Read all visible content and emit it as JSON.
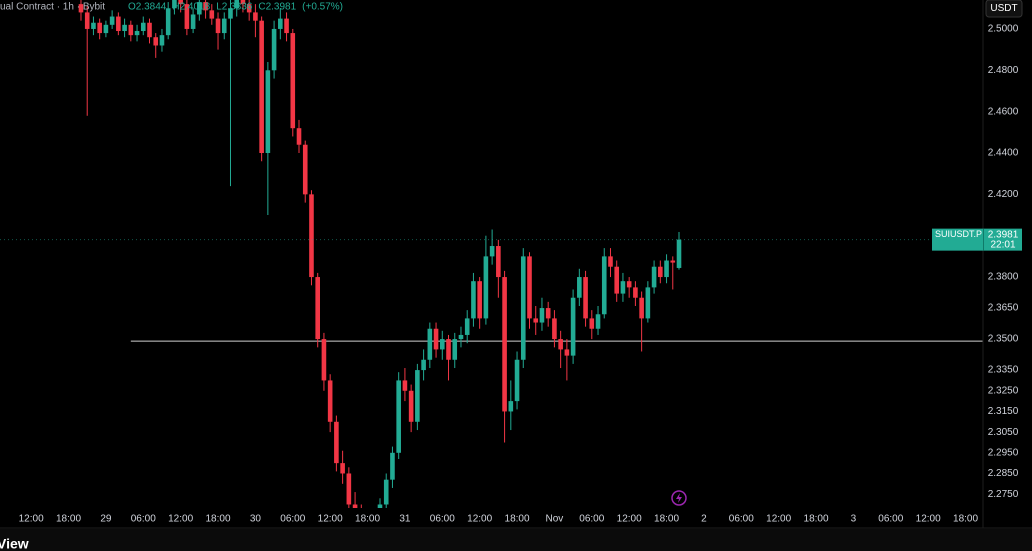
{
  "header": {
    "symbol": "ual Contract · 1h · Bybit",
    "ohlc": [
      "O2.3844",
      "H2.4018",
      "L2.3836",
      "C2.3981",
      "(+0.57%)"
    ],
    "currency": "USDT",
    "brand": "View"
  },
  "chart_data": {
    "type": "candlestick",
    "up_color": "#22ab94",
    "down_color": "#f23645",
    "x": [
      20,
      21,
      22,
      23,
      24,
      25,
      26,
      27,
      28,
      29,
      30,
      31,
      32,
      33,
      34,
      35,
      36,
      37,
      38,
      39,
      40,
      41,
      42,
      43,
      44,
      45,
      46,
      47,
      48,
      49,
      50,
      51,
      52,
      53,
      54,
      55,
      56,
      57,
      58,
      59,
      60,
      61,
      62,
      63,
      64,
      65,
      66,
      67,
      68,
      69,
      70,
      71,
      72,
      73,
      74,
      75,
      76,
      77,
      78,
      79,
      80,
      81,
      82,
      83,
      84,
      85,
      86,
      87,
      88,
      89,
      90,
      91,
      92,
      93,
      94,
      95,
      96,
      97,
      98,
      99,
      100,
      101,
      102,
      103,
      104,
      105,
      106,
      107,
      108,
      109,
      110,
      111,
      112,
      113,
      114,
      115,
      116
    ],
    "open": [
      2.512,
      2.508,
      2.5,
      2.503,
      2.498,
      2.502,
      2.506,
      2.499,
      2.502,
      2.497,
      2.499,
      2.503,
      2.496,
      2.492,
      2.497,
      2.51,
      2.514,
      2.512,
      2.5,
      2.507,
      2.513,
      2.509,
      2.505,
      2.498,
      2.505,
      2.51,
      2.514,
      2.512,
      2.508,
      2.504,
      2.44,
      2.48,
      2.5,
      2.505,
      2.498,
      2.452,
      2.444,
      2.42,
      2.38,
      2.35,
      2.33,
      2.31,
      2.29,
      2.285,
      2.27,
      2.266,
      2.262,
      2.26,
      2.264,
      2.27,
      2.282,
      2.295,
      2.33,
      2.325,
      2.31,
      2.335,
      2.34,
      2.355,
      2.345,
      2.35,
      2.34,
      2.35,
      2.352,
      2.36,
      2.378,
      2.36,
      2.39,
      2.395,
      2.38,
      2.315,
      2.32,
      2.34,
      2.39,
      2.36,
      2.358,
      2.365,
      2.36,
      2.35,
      2.345,
      2.342,
      2.37,
      2.38,
      2.36,
      2.355,
      2.362,
      2.39,
      2.385,
      2.372,
      2.378,
      2.375,
      2.37,
      2.36,
      2.375,
      2.385,
      2.38,
      2.388,
      2.3844
    ],
    "high": [
      2.516,
      2.511,
      2.506,
      2.505,
      2.504,
      2.509,
      2.508,
      2.505,
      2.504,
      2.502,
      2.506,
      2.505,
      2.498,
      2.5,
      2.513,
      2.518,
      2.518,
      2.514,
      2.51,
      2.518,
      2.516,
      2.512,
      2.508,
      2.508,
      2.514,
      2.518,
      2.518,
      2.516,
      2.512,
      2.506,
      2.484,
      2.504,
      2.51,
      2.508,
      2.5,
      2.456,
      2.446,
      2.422,
      2.382,
      2.353,
      2.333,
      2.313,
      2.296,
      2.288,
      2.276,
      2.27,
      2.266,
      2.268,
      2.273,
      2.285,
      2.298,
      2.334,
      2.336,
      2.328,
      2.338,
      2.345,
      2.358,
      2.358,
      2.354,
      2.352,
      2.353,
      2.356,
      2.364,
      2.382,
      2.38,
      2.4,
      2.403,
      2.398,
      2.383,
      2.33,
      2.344,
      2.394,
      2.392,
      2.366,
      2.37,
      2.368,
      2.364,
      2.354,
      2.35,
      2.374,
      2.384,
      2.383,
      2.364,
      2.366,
      2.394,
      2.394,
      2.388,
      2.382,
      2.38,
      2.378,
      2.373,
      2.378,
      2.388,
      2.388,
      2.391,
      2.39,
      2.4018
    ],
    "low": [
      2.504,
      2.458,
      2.497,
      2.495,
      2.496,
      2.5,
      2.497,
      2.496,
      2.494,
      2.494,
      2.497,
      2.493,
      2.486,
      2.489,
      2.495,
      2.507,
      2.508,
      2.497,
      2.498,
      2.504,
      2.505,
      2.502,
      2.49,
      2.495,
      2.424,
      2.506,
      2.508,
      2.504,
      2.496,
      2.436,
      2.41,
      2.476,
      2.495,
      2.494,
      2.448,
      2.44,
      2.416,
      2.376,
      2.346,
      2.325,
      2.305,
      2.286,
      2.28,
      2.266,
      2.262,
      2.258,
      2.256,
      2.256,
      2.26,
      2.266,
      2.278,
      2.292,
      2.32,
      2.305,
      2.306,
      2.33,
      2.336,
      2.341,
      2.34,
      2.33,
      2.336,
      2.346,
      2.348,
      2.356,
      2.355,
      2.357,
      2.386,
      2.37,
      2.3,
      2.306,
      2.316,
      2.336,
      2.355,
      2.352,
      2.354,
      2.356,
      2.346,
      2.336,
      2.33,
      2.338,
      2.366,
      2.356,
      2.35,
      2.352,
      2.36,
      2.38,
      2.368,
      2.368,
      2.37,
      2.366,
      2.344,
      2.358,
      2.372,
      2.377,
      2.377,
      2.374,
      2.3836
    ],
    "close": [
      2.508,
      2.5,
      2.503,
      2.498,
      2.502,
      2.506,
      2.499,
      2.502,
      2.497,
      2.499,
      2.503,
      2.496,
      2.492,
      2.497,
      2.51,
      2.514,
      2.512,
      2.5,
      2.507,
      2.513,
      2.509,
      2.505,
      2.498,
      2.505,
      2.51,
      2.514,
      2.512,
      2.508,
      2.504,
      2.44,
      2.48,
      2.5,
      2.505,
      2.498,
      2.452,
      2.444,
      2.42,
      2.38,
      2.35,
      2.33,
      2.31,
      2.29,
      2.285,
      2.27,
      2.266,
      2.262,
      2.26,
      2.264,
      2.27,
      2.282,
      2.295,
      2.33,
      2.325,
      2.31,
      2.335,
      2.34,
      2.355,
      2.345,
      2.35,
      2.34,
      2.35,
      2.352,
      2.36,
      2.378,
      2.36,
      2.39,
      2.395,
      2.38,
      2.315,
      2.32,
      2.34,
      2.39,
      2.36,
      2.358,
      2.365,
      2.36,
      2.35,
      2.345,
      2.342,
      2.37,
      2.38,
      2.36,
      2.355,
      2.362,
      2.39,
      2.385,
      2.372,
      2.378,
      2.375,
      2.37,
      2.36,
      2.375,
      2.385,
      2.38,
      2.388,
      2.387,
      2.3981
    ],
    "xlim": [
      7,
      164.8
    ],
    "ylim": [
      2.2683,
      2.514
    ],
    "xticks": [
      {
        "value": 12,
        "label": "12:00"
      },
      {
        "value": 18,
        "label": "18:00"
      },
      {
        "value": 24,
        "label": "29"
      },
      {
        "value": 30,
        "label": "06:00"
      },
      {
        "value": 36,
        "label": "12:00"
      },
      {
        "value": 42,
        "label": "18:00"
      },
      {
        "value": 48,
        "label": "30"
      },
      {
        "value": 54,
        "label": "06:00"
      },
      {
        "value": 60,
        "label": "12:00"
      },
      {
        "value": 66,
        "label": "18:00"
      },
      {
        "value": 72,
        "label": "31"
      },
      {
        "value": 78,
        "label": "06:00"
      },
      {
        "value": 84,
        "label": "12:00"
      },
      {
        "value": 90,
        "label": "18:00"
      },
      {
        "value": 96,
        "label": "Nov"
      },
      {
        "value": 102,
        "label": "06:00"
      },
      {
        "value": 108,
        "label": "12:00"
      },
      {
        "value": 114,
        "label": "18:00"
      },
      {
        "value": 120,
        "label": "2"
      },
      {
        "value": 126,
        "label": "06:00"
      },
      {
        "value": 132,
        "label": "12:00"
      },
      {
        "value": 138,
        "label": "18:00"
      },
      {
        "value": 144,
        "label": "3"
      },
      {
        "value": 150,
        "label": "06:00"
      },
      {
        "value": 156,
        "label": "12:00"
      },
      {
        "value": 162,
        "label": "18:00"
      }
    ],
    "yticks": [
      {
        "value": 2.5,
        "label": "2.5000"
      },
      {
        "value": 2.48,
        "label": "2.4800"
      },
      {
        "value": 2.46,
        "label": "2.4600"
      },
      {
        "value": 2.44,
        "label": "2.4400"
      },
      {
        "value": 2.42,
        "label": "2.4200"
      },
      {
        "value": 2.38,
        "label": "2.3800"
      },
      {
        "value": 2.365,
        "label": "2.3650"
      },
      {
        "value": 2.35,
        "label": "2.3500"
      },
      {
        "value": 2.335,
        "label": "2.3350"
      },
      {
        "value": 2.325,
        "label": "2.3250"
      },
      {
        "value": 2.315,
        "label": "2.3150"
      },
      {
        "value": 2.305,
        "label": "2.3050"
      },
      {
        "value": 2.295,
        "label": "2.2950"
      },
      {
        "value": 2.285,
        "label": "2.2850"
      },
      {
        "value": 2.275,
        "label": "2.2750"
      }
    ],
    "horizontal_line": {
      "value": 2.349,
      "from": 28
    },
    "price_tag": {
      "symbol": "SUIUSDT.P",
      "price": "2.3981",
      "countdown": "22:01"
    }
  }
}
